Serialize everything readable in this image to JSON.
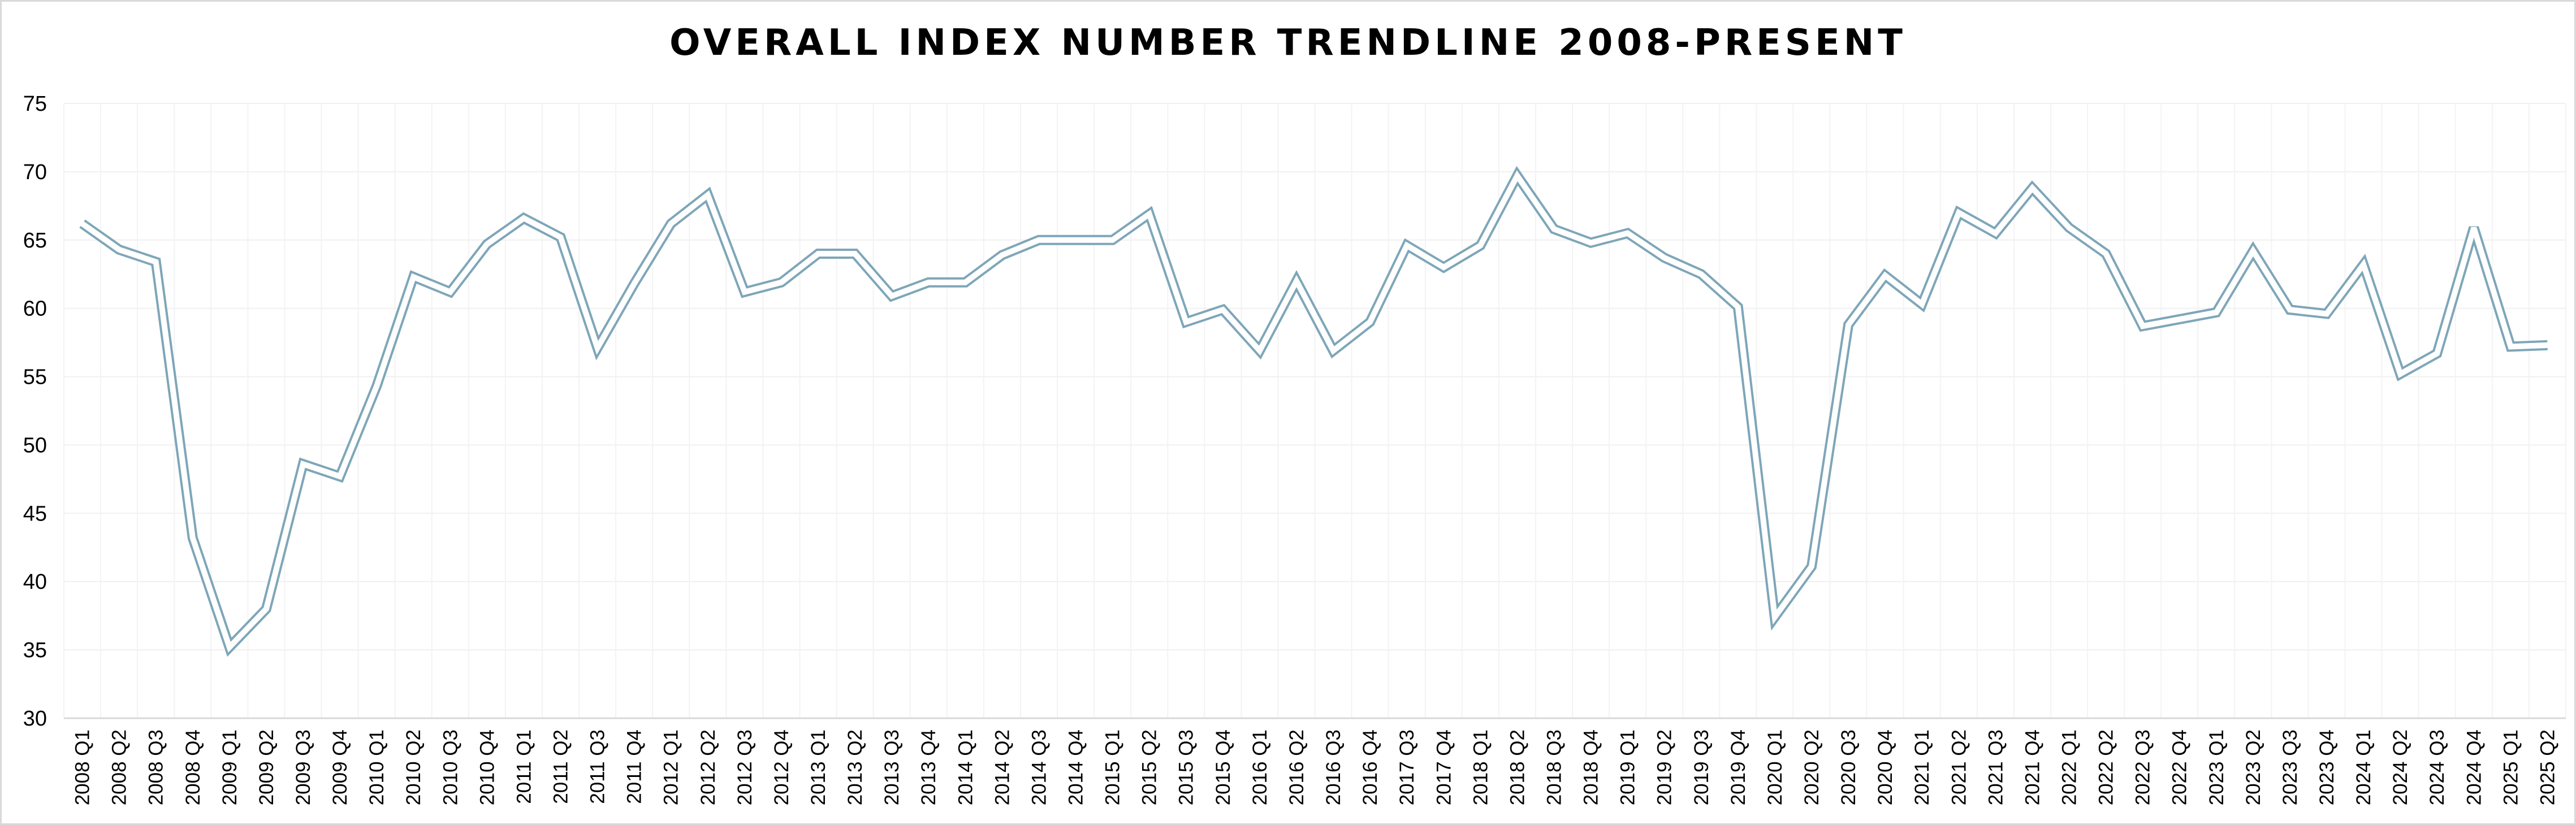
{
  "chart_data": {
    "type": "line",
    "title": "OVERALL INDEX NUMBER TRENDLINE 2008-PRESENT",
    "xlabel": "",
    "ylabel": "",
    "ylim": [
      30,
      75
    ],
    "yticks": [
      30,
      35,
      40,
      45,
      50,
      55,
      60,
      65,
      70,
      75
    ],
    "grid": true,
    "legend": "none",
    "line_color": "#7ea6b8",
    "categories": [
      "2008 Q1",
      "2008 Q2",
      "2008 Q3",
      "2008 Q4",
      "2009 Q1",
      "2009 Q2",
      "2009 Q3",
      "2009 Q4",
      "2010 Q1",
      "2010 Q2",
      "2010 Q3",
      "2010 Q4",
      "2011 Q1",
      "2011 Q2",
      "2011 Q3",
      "2011 Q4",
      "2012 Q1",
      "2012 Q2",
      "2012 Q3",
      "2012 Q4",
      "2013 Q1",
      "2013 Q2",
      "2013 Q3",
      "2013 Q4",
      "2014 Q1",
      "2014 Q2",
      "2014 Q3",
      "2014 Q4",
      "2015 Q1",
      "2015 Q2",
      "2015 Q3",
      "2015 Q4",
      "2016 Q1",
      "2016 Q2",
      "2016 Q3",
      "2016 Q4",
      "2017 Q3",
      "2017 Q4",
      "2018 Q1",
      "2018 Q2",
      "2018 Q3",
      "2018 Q4",
      "2019 Q1",
      "2019 Q2",
      "2019 Q3",
      "2019 Q4",
      "2020 Q1",
      "2020 Q2",
      "2020 Q3",
      "2020 Q4",
      "2021 Q1",
      "2021 Q2",
      "2021 Q3",
      "2021 Q4",
      "2022 Q1",
      "2022 Q2",
      "2022 Q3",
      "2022 Q4",
      "2023 Q1",
      "2023 Q2",
      "2023 Q3",
      "2023 Q4",
      "2024 Q1",
      "2024 Q2",
      "2024 Q3",
      "2024 Q4",
      "2025 Q1",
      "2025 Q2"
    ],
    "series": [
      {
        "values": [
          66.2,
          64.3,
          63.4,
          43.2,
          35.2,
          38.0,
          48.6,
          47.7,
          54.3,
          62.3,
          61.2,
          64.7,
          66.6,
          65.2,
          57.1,
          61.8,
          66.2,
          68.3,
          61.2,
          61.9,
          64.0,
          64.0,
          60.9,
          61.9,
          61.9,
          63.9,
          65.0,
          65.0,
          65.0,
          66.9,
          59.0,
          59.9,
          56.9,
          62.0,
          56.9,
          59.0,
          64.6,
          63.0,
          64.6,
          69.7,
          65.8,
          64.8,
          65.5,
          63.7,
          62.5,
          60.1,
          37.4,
          41.1,
          58.8,
          62.4,
          60.3,
          67.0,
          65.5,
          68.8,
          65.9,
          64.0,
          58.7,
          59.2,
          59.7,
          64.2,
          59.9,
          59.6,
          63.2,
          55.2,
          56.7,
          65.9,
          57.2,
          57.3
        ]
      }
    ]
  }
}
